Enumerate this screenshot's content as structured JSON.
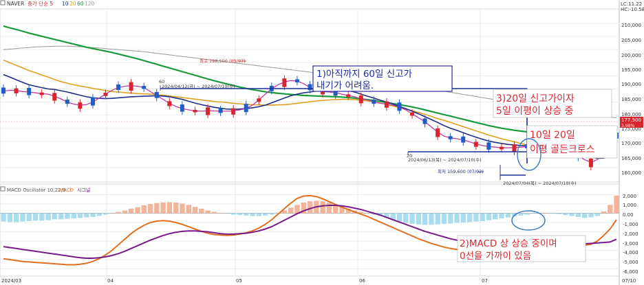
{
  "header": {
    "source": "NAVER",
    "legend": [
      {
        "text": "종가 단순 5",
        "color": "#cc2222"
      },
      {
        "text": "10",
        "color": "#1c2d8a"
      },
      {
        "text": "20",
        "color": "#e0a020"
      },
      {
        "text": "60",
        "color": "#1a9a3a"
      },
      {
        "text": "120",
        "color": "#999999"
      }
    ],
    "corner_top": "LC:11.22",
    "corner_bottom": "HC:-10.58"
  },
  "macd_legend": [
    {
      "text": "MACD Oscillator 10,22,9",
      "color": "#555555"
    },
    {
      "text": "MACD",
      "color": "#e07020"
    },
    {
      "text": "시그널",
      "color": "#7a1a8a"
    }
  ],
  "annotations": {
    "high_label": "최고 198,500 (05/07)",
    "low_label": "최저 159,600 (07/02)",
    "range1_tag": "60",
    "range1": "2024/04/12(금) ~ 2024/07/10(수)",
    "range2_tag": "20",
    "range2": "2024/06/13(목) ~ 2024/07/10(수)",
    "range3": "2024/07/04(목) ~ 2024/07/10(수)",
    "price_badge": "177,500",
    "price_badge_pct": "3.98%",
    "note1": [
      "1)아직까지 60일 신고가",
      "내기가 어려움."
    ],
    "note2": [
      "2)MACD 상 상승 중이며",
      "0선을 가까이 있음"
    ],
    "note3": [
      "3)20일 신고가이자",
      "5일 이평이 상승 중"
    ],
    "note4": [
      "10일 20일",
      "이평 골든크로스"
    ]
  },
  "x_axis_labels": [
    "2024/03",
    "04",
    "05",
    "06",
    "07",
    "07/10"
  ],
  "chart_data": [
    {
      "type": "candlestick",
      "title": "NAVER",
      "y_ticks": [
        "210,000",
        "205,000",
        "200,000",
        "195,000",
        "190,000",
        "185,000",
        "180,000",
        "175,000",
        "170,000",
        "165,000",
        "160,000"
      ],
      "ylim": [
        155000,
        220000
      ],
      "price_line_value": 177500,
      "series": [
        {
          "name": "5",
          "values": [
            189200,
            189500,
            189400,
            189000,
            188800,
            188500,
            188200,
            188000,
            187200,
            186200,
            185000,
            184200,
            183800,
            184000,
            185000,
            186500,
            188000,
            189500,
            190500,
            191000,
            191200,
            191000,
            190500,
            189000,
            187500,
            186000,
            184500,
            183300,
            182500,
            182000,
            181600,
            181500,
            181700,
            181600,
            181500,
            181500,
            181600,
            182000,
            182500,
            183800,
            185800,
            188000,
            190000,
            191600,
            192600,
            193200,
            193000,
            192000,
            190500,
            189500,
            189000,
            188800,
            188600,
            188000,
            187500,
            187000,
            186200,
            185800,
            185000,
            184500,
            184200,
            183800,
            183000,
            182000,
            180500,
            179000,
            177500,
            175500,
            173500,
            172000,
            171300,
            171000,
            170500,
            169800,
            169000,
            168400,
            168000,
            167800,
            167500,
            167500,
            167600,
            167800,
            168000,
            168000,
            168000,
            168000,
            167800,
            167500,
            167000,
            166000,
            164500,
            163000,
            162000,
            163000,
            165500,
            168500,
            172000
          ]
        },
        {
          "name": "10",
          "values": [
            195500,
            194500,
            193500,
            192500,
            191600,
            191000,
            190500,
            190000,
            189800,
            189300,
            188800,
            188200,
            187600,
            187000,
            186600,
            186400,
            186300,
            186400,
            186600,
            186800,
            187000,
            187100,
            187200,
            187300,
            187400,
            187300,
            187000,
            186500,
            186000,
            185300,
            184600,
            184000,
            183500,
            183000,
            182600,
            182300,
            182200,
            182300,
            182500,
            182800,
            183200,
            183800,
            184700,
            185600,
            186500,
            187400,
            188000,
            188500,
            188800,
            189200,
            189600,
            189800,
            189900,
            189700,
            189300,
            188800,
            188000,
            187200,
            186500,
            185700,
            185000,
            184200,
            183300,
            182500,
            181500,
            180500,
            179400,
            178300,
            177200,
            176000,
            175000,
            174200,
            173300,
            172400,
            171600,
            170800,
            170100,
            169600,
            169200,
            168800,
            168600,
            168400,
            168300,
            168100,
            167900,
            167700,
            167400,
            167100,
            166700,
            166100,
            165400,
            164700,
            164000,
            163500,
            163600,
            164300,
            166000
          ]
        },
        {
          "name": "20",
          "values": [
            201000,
            200000,
            199000,
            198000,
            197000,
            196200,
            195300,
            194500,
            193600,
            192800,
            192200,
            191600,
            191100,
            190700,
            190200,
            189800,
            189400,
            189000,
            188800,
            188600,
            188400,
            188200,
            188100,
            188000,
            187800,
            187600,
            187300,
            187000,
            186700,
            186400,
            186100,
            185800,
            185500,
            185200,
            185000,
            184800,
            184500,
            184300,
            184100,
            184000,
            183900,
            183800,
            183800,
            183900,
            184000,
            184200,
            184500,
            184800,
            185100,
            185400,
            185600,
            185800,
            185900,
            186000,
            186000,
            185900,
            185700,
            185400,
            185000,
            184600,
            184100,
            183500,
            182900,
            182300,
            181700,
            181000,
            180300,
            179500,
            178700,
            178000,
            177200,
            176400,
            175600,
            174800,
            174000,
            173200,
            172400,
            171700,
            171000,
            170400,
            169800,
            169200,
            168600,
            168100,
            167600,
            167100,
            166700,
            166400,
            166100,
            165800,
            165600,
            165400,
            165200,
            165000,
            164900,
            164900,
            165200
          ]
        },
        {
          "name": "60",
          "values": [
            214000,
            213300,
            212700,
            212000,
            211300,
            210700,
            210100,
            209500,
            208900,
            208300,
            207700,
            207100,
            206500,
            205900,
            205400,
            204900,
            204400,
            203900,
            203300,
            202700,
            202100,
            201500,
            200800,
            200100,
            199400,
            198700,
            198000,
            197300,
            196600,
            195900,
            195200,
            194500,
            193800,
            193100,
            192500,
            191900,
            191300,
            190700,
            190200,
            189700,
            189300,
            188900,
            188600,
            188300,
            188100,
            187900,
            187700,
            187500,
            187400,
            187300,
            187200,
            187100,
            187000,
            186900,
            186700,
            186500,
            186200,
            185900,
            185600,
            185200,
            184800,
            184400,
            184000,
            183600,
            183100,
            182600,
            182000,
            181400,
            180800,
            180200,
            179600,
            179000,
            178400,
            177800,
            177200,
            176600,
            176000,
            175500,
            175000,
            174600,
            174200,
            173900,
            173600,
            173400,
            173200,
            173100,
            173000,
            173000,
            173100,
            173200,
            173300,
            173400,
            173500,
            173600,
            173800,
            173900,
            174000
          ]
        },
        {
          "name": "120",
          "values": [
            205000,
            205200,
            205400,
            205600,
            205800,
            206000,
            206100,
            206200,
            206300,
            206300,
            206300,
            206200,
            206100,
            206000,
            205800,
            205600,
            205400,
            205200,
            205000,
            204800,
            204600,
            204400,
            204200,
            203900,
            203600,
            203300,
            203000,
            202700,
            202400,
            202100,
            201800,
            201500,
            201200,
            200900,
            200600,
            200300,
            200000,
            199700,
            199400,
            199100,
            198800,
            198500,
            198200,
            197900,
            197600,
            197300,
            197000,
            196700,
            196400,
            196100,
            195800,
            195500,
            195200,
            194900,
            194600,
            194300,
            194000,
            193700,
            193400,
            193100,
            192700,
            192300,
            191900,
            191500,
            191100,
            190700,
            190300,
            189900,
            189500,
            189100,
            188700,
            188300,
            187900,
            187500,
            187100,
            186700,
            186300,
            185900,
            185500,
            185100,
            184700,
            184300,
            183900,
            183500,
            183100,
            182700,
            182300,
            181900,
            181500,
            181100,
            180700,
            180400,
            180100,
            179800,
            179500,
            179200,
            179000
          ]
        }
      ]
    },
    {
      "type": "line",
      "title": "MACD Oscillator 10,22,9",
      "y_ticks": [
        "2,000",
        "1,000",
        "0.00",
        "-1,000",
        "-2,000",
        "-3,000",
        "-4,000",
        "-5,000",
        "-6,000"
      ],
      "ylim": [
        -6700,
        3000
      ],
      "series": [
        {
          "name": "MACD Oscillator 10,22,9",
          "values": [
            -900,
            -950,
            -950,
            -900,
            -850,
            -800,
            -800,
            -750,
            -650,
            -650,
            -600,
            -550,
            -500,
            -450,
            -400,
            -300,
            -150,
            0,
            150,
            300,
            500,
            650,
            850,
            1000,
            1100,
            1150,
            1200,
            1150,
            1050,
            900,
            700,
            500,
            300,
            150,
            50,
            -50,
            -150,
            -200,
            -250,
            -300,
            -300,
            -250,
            -150,
            50,
            300,
            600,
            900,
            1150,
            1300,
            1350,
            1300,
            1150,
            950,
            700,
            500,
            300,
            150,
            0,
            -150,
            -300,
            -500,
            -700,
            -900,
            -1050,
            -1150,
            -1200,
            -1250,
            -1250,
            -1200,
            -1150,
            -1100,
            -1050,
            -1000,
            -950,
            -900,
            -850,
            -750,
            -650,
            -550,
            -450,
            -350,
            -250,
            -150,
            -50,
            0,
            0,
            -50,
            -100,
            -200,
            -300,
            -400,
            -500,
            -450,
            -300,
            200,
            900,
            1900
          ]
        },
        {
          "name": "MACD",
          "values": [
            -4900,
            -5000,
            -5100,
            -5200,
            -5250,
            -5300,
            -5350,
            -5400,
            -5450,
            -5500,
            -5550,
            -5550,
            -5500,
            -5400,
            -5200,
            -4900,
            -4500,
            -4000,
            -3400,
            -2800,
            -2200,
            -1700,
            -1300,
            -1000,
            -850,
            -800,
            -850,
            -1000,
            -1200,
            -1450,
            -1700,
            -1950,
            -2150,
            -2300,
            -2350,
            -2400,
            -2350,
            -2250,
            -2100,
            -1900,
            -1600,
            -1200,
            -700,
            -100,
            500,
            1100,
            1600,
            1850,
            1900,
            1800,
            1550,
            1250,
            950,
            650,
            400,
            150,
            -100,
            -350,
            -650,
            -950,
            -1250,
            -1550,
            -1850,
            -2150,
            -2450,
            -2750,
            -3000,
            -3250,
            -3450,
            -3650,
            -3800,
            -3900,
            -3950,
            -3950,
            -3900,
            -3850,
            -3800,
            -3750,
            -3750,
            -3750,
            -3800,
            -3850,
            -3850,
            -3800,
            -3750,
            -3650,
            -3550,
            -3450,
            -3400,
            -3400,
            -3450,
            -3450,
            -3350,
            -3000,
            -2400,
            -1700,
            -700
          ]
        },
        {
          "name": "시그널",
          "values": [
            -3600,
            -3700,
            -3800,
            -3900,
            -4000,
            -4100,
            -4200,
            -4300,
            -4400,
            -4500,
            -4600,
            -4700,
            -4800,
            -4850,
            -4850,
            -4800,
            -4700,
            -4550,
            -4350,
            -4100,
            -3800,
            -3500,
            -3200,
            -2900,
            -2650,
            -2400,
            -2200,
            -2050,
            -1950,
            -1900,
            -1900,
            -1950,
            -2000,
            -2100,
            -2200,
            -2250,
            -2250,
            -2200,
            -2150,
            -2050,
            -1900,
            -1700,
            -1450,
            -1100,
            -750,
            -400,
            -50,
            250,
            500,
            700,
            800,
            850,
            850,
            800,
            700,
            550,
            400,
            200,
            0,
            -200,
            -450,
            -700,
            -950,
            -1200,
            -1450,
            -1700,
            -1950,
            -2150,
            -2350,
            -2550,
            -2750,
            -2900,
            -3050,
            -3200,
            -3300,
            -3350,
            -3400,
            -3450,
            -3500,
            -3550,
            -3600,
            -3600,
            -3600,
            -3600,
            -3600,
            -3600,
            -3550,
            -3500,
            -3450,
            -3400,
            -3350,
            -3300,
            -3250,
            -3200,
            -3150,
            -3100,
            -2800
          ]
        }
      ]
    }
  ]
}
